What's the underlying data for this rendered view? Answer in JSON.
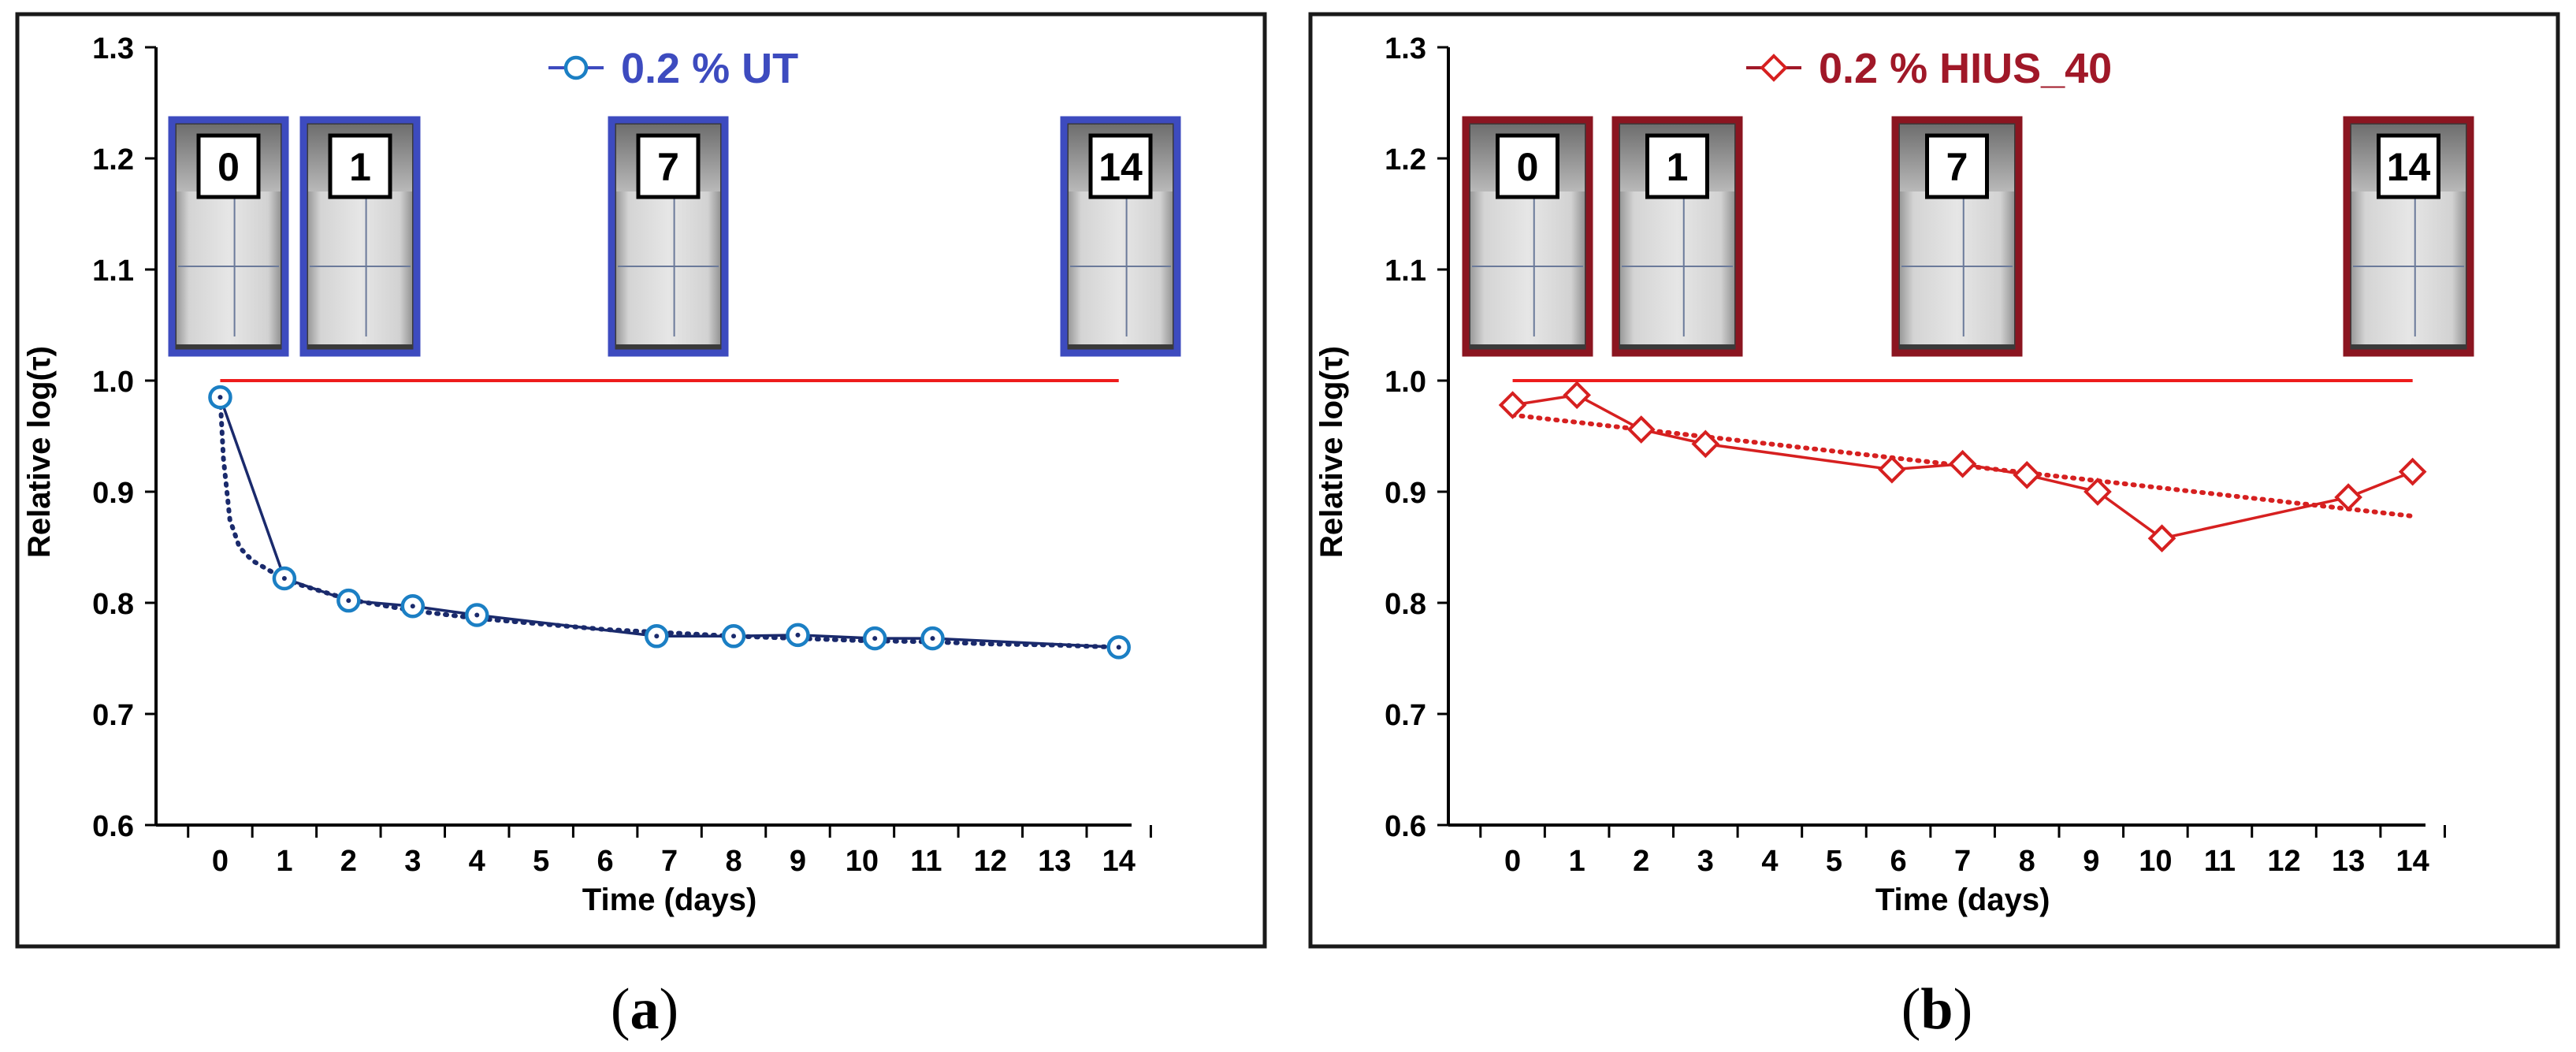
{
  "panels": [
    {
      "caption": "(a)",
      "caption_letter": "a",
      "legend": "0.2 % UT",
      "legend_color": "#3d4bbf",
      "line_color": "#1a2a6c",
      "marker_color": "#1b7fc4",
      "marker": "circle-dot",
      "frame_color": "#3d4bbf",
      "vial_labels": [
        "0",
        "1",
        "7",
        "14"
      ],
      "ylabel": "Relative log(τ)",
      "xlabel": "Time (days)"
    },
    {
      "caption": "(b)",
      "caption_letter": "b",
      "legend": "0.2 % HIUS_40",
      "legend_color": "#a01828",
      "line_color": "#d62020",
      "marker_color": "#d62020",
      "marker": "diamond",
      "frame_color": "#8b1520",
      "vial_labels": [
        "0",
        "1",
        "7",
        "14"
      ],
      "ylabel": "Relative log(τ)",
      "xlabel": "Time (days)"
    }
  ],
  "chart_data": [
    {
      "type": "line",
      "legend": "0.2 % UT",
      "x": [
        0,
        1,
        2,
        3,
        4,
        6.8,
        8,
        9,
        10.2,
        11.1,
        14
      ],
      "values": [
        0.985,
        0.822,
        0.802,
        0.797,
        0.789,
        0.77,
        0.77,
        0.771,
        0.768,
        0.768,
        0.76
      ],
      "trend_x": [
        0,
        0.05,
        0.15,
        0.3,
        0.5,
        0.8,
        1.2,
        2,
        3,
        4,
        5,
        6,
        7,
        8,
        9,
        10,
        11,
        12,
        13,
        14
      ],
      "trend_values": [
        0.985,
        0.93,
        0.875,
        0.85,
        0.838,
        0.828,
        0.817,
        0.803,
        0.793,
        0.786,
        0.781,
        0.776,
        0.773,
        0.77,
        0.768,
        0.766,
        0.765,
        0.763,
        0.762,
        0.76
      ],
      "reference_line": 1.0,
      "reference_color": "#ee1c1c",
      "xlabel": "Time (days)",
      "ylabel": "Relative log(τ)",
      "xticks": [
        0,
        1,
        2,
        3,
        4,
        5,
        6,
        7,
        8,
        9,
        10,
        11,
        12,
        13,
        14
      ],
      "xticklabels": [
        "0",
        "1",
        "2",
        "3",
        "4",
        "5",
        "6",
        "7",
        "8",
        "9",
        "10",
        "11",
        "12",
        "13",
        "14"
      ],
      "yticks": [
        0.6,
        0.7,
        0.8,
        0.9,
        1.0,
        1.1,
        1.2,
        1.3
      ],
      "yticklabels": [
        "0.6",
        "0.7",
        "0.8",
        "0.9",
        "1.0",
        "1.1",
        "1.2",
        "1.3"
      ],
      "xlim": [
        -1,
        14.2
      ],
      "ylim": [
        0.6,
        1.3
      ],
      "grid": false
    },
    {
      "type": "line",
      "legend": "0.2 % HIUS_40",
      "x": [
        0,
        1,
        2,
        3,
        5.9,
        7,
        8,
        9.1,
        10.1,
        13,
        14
      ],
      "values": [
        0.978,
        0.987,
        0.956,
        0.943,
        0.92,
        0.925,
        0.915,
        0.9,
        0.858,
        0.895,
        0.918
      ],
      "trend_x": [
        0,
        14
      ],
      "trend_values": [
        0.969,
        0.878
      ],
      "reference_line": 1.0,
      "reference_color": "#ee1c1c",
      "xlabel": "Time (days)",
      "ylabel": "Relative log(τ)",
      "xticks": [
        0,
        1,
        2,
        3,
        4,
        5,
        6,
        7,
        8,
        9,
        10,
        11,
        12,
        13,
        14
      ],
      "xticklabels": [
        "0",
        "1",
        "2",
        "3",
        "4",
        "5",
        "6",
        "7",
        "8",
        "9",
        "10",
        "11",
        "12",
        "13",
        "14"
      ],
      "yticks": [
        0.6,
        0.7,
        0.8,
        0.9,
        1.0,
        1.1,
        1.2,
        1.3
      ],
      "yticklabels": [
        "0.6",
        "0.7",
        "0.8",
        "0.9",
        "1.0",
        "1.1",
        "1.2",
        "1.3"
      ],
      "xlim": [
        -1,
        14.2
      ],
      "ylim": [
        0.6,
        1.3
      ],
      "grid": false
    }
  ]
}
